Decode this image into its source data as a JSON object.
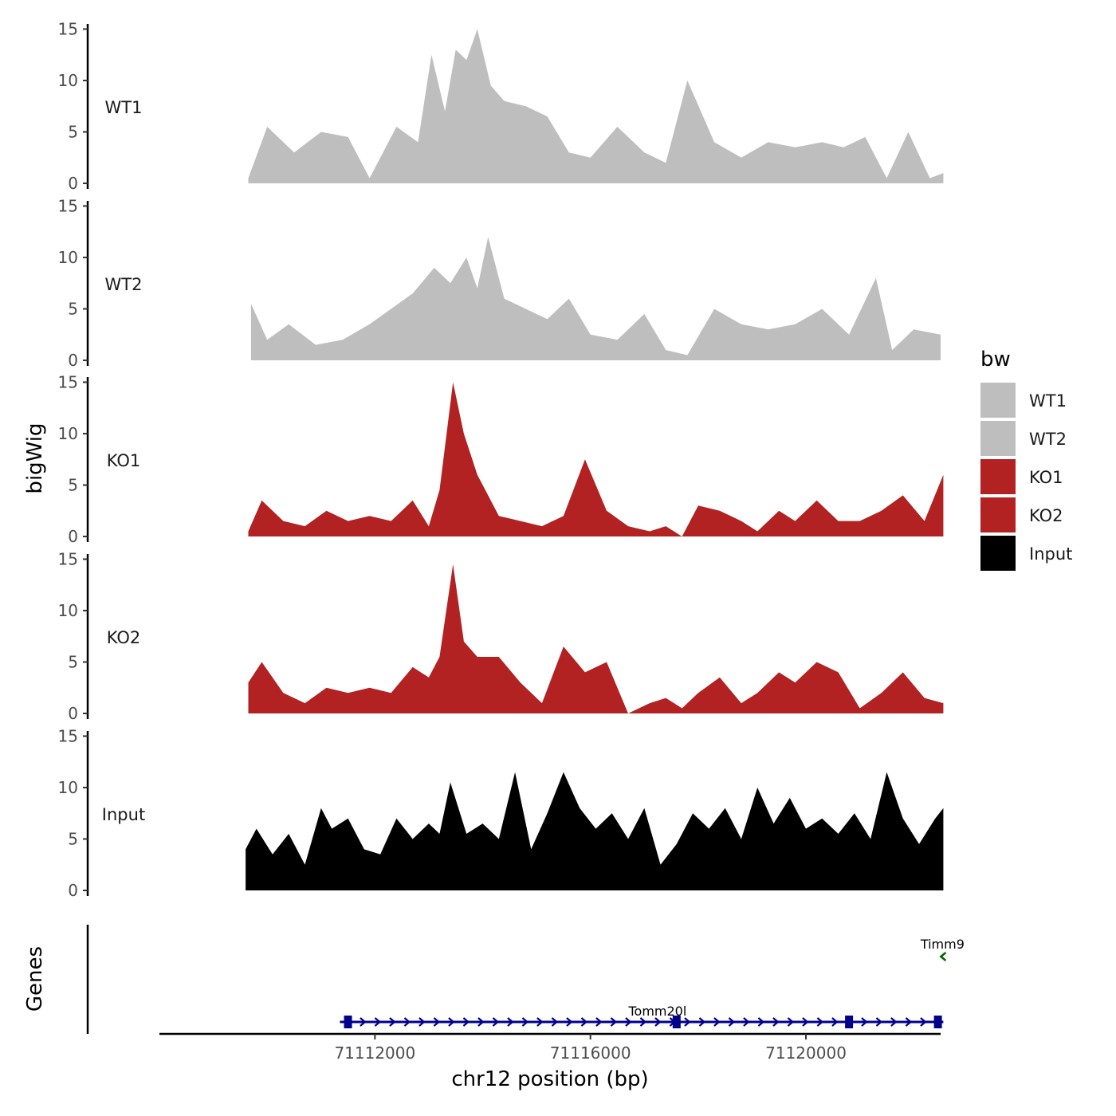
{
  "chart_data": {
    "type": "area",
    "ylabel": "bigWig",
    "genes_label": "Genes",
    "xlabel": "chr12 position (bp)",
    "xlim": [
      71108000,
      71122500
    ],
    "ylim": [
      0,
      15.5
    ],
    "yticks": [
      "0",
      "5",
      "10",
      "15"
    ],
    "xticks": [
      {
        "value": 71112000,
        "label": "71112000"
      },
      {
        "value": 71116000,
        "label": "71116000"
      },
      {
        "value": 71120000,
        "label": "71120000"
      }
    ],
    "legend": {
      "title": "bw",
      "entries": [
        {
          "label": "WT1",
          "color": "#bebebe"
        },
        {
          "label": "WT2",
          "color": "#bebebe"
        },
        {
          "label": "KO1",
          "color": "#b22222"
        },
        {
          "label": "KO2",
          "color": "#b22222"
        },
        {
          "label": "Input",
          "color": "#000000"
        }
      ]
    },
    "tracks": [
      {
        "name": "WT1",
        "color": "#bebebe",
        "x": [
          71109650,
          71110000,
          71110500,
          71111000,
          71111500,
          71111900,
          71112400,
          71112800,
          71113050,
          71113300,
          71113500,
          71113700,
          71113900,
          71114150,
          71114400,
          71114800,
          71115200,
          71115600,
          71116000,
          71116500,
          71117000,
          71117400,
          71117800,
          71118300,
          71118800,
          71119300,
          71119800,
          71120300,
          71120700,
          71121100,
          71121500,
          71121900,
          71122300,
          71122550
        ],
        "values": [
          0.5,
          5.5,
          3.0,
          5.0,
          4.5,
          0.5,
          5.5,
          4.0,
          12.5,
          7.0,
          13.0,
          12.0,
          15.0,
          9.5,
          8.0,
          7.5,
          6.5,
          3.0,
          2.5,
          5.5,
          3.0,
          2.0,
          10.0,
          4.0,
          2.5,
          4.0,
          3.5,
          4.0,
          3.5,
          4.5,
          0.5,
          5.0,
          0.5,
          1.0
        ]
      },
      {
        "name": "WT2",
        "color": "#bebebe",
        "x": [
          71109700,
          71110000,
          71110400,
          71110900,
          71111400,
          71111900,
          71112300,
          71112700,
          71113100,
          71113400,
          71113700,
          71113900,
          71114100,
          71114400,
          71114800,
          71115200,
          71115600,
          71116000,
          71116500,
          71117000,
          71117400,
          71117800,
          71118300,
          71118800,
          71119300,
          71119800,
          71120300,
          71120800,
          71121300,
          71121600,
          71122000,
          71122500
        ],
        "values": [
          5.5,
          2.0,
          3.5,
          1.5,
          2.0,
          3.5,
          5.0,
          6.5,
          9.0,
          7.5,
          10.0,
          7.0,
          12.0,
          6.0,
          5.0,
          4.0,
          6.0,
          2.5,
          2.0,
          4.5,
          1.0,
          0.5,
          5.0,
          3.5,
          3.0,
          3.5,
          5.0,
          2.5,
          8.0,
          1.0,
          3.0,
          2.5
        ]
      },
      {
        "name": "KO1",
        "color": "#b22222",
        "x": [
          71109650,
          71109900,
          71110300,
          71110700,
          71111100,
          71111500,
          71111900,
          71112300,
          71112700,
          71113000,
          71113200,
          71113450,
          71113650,
          71113900,
          71114300,
          71114700,
          71115100,
          71115500,
          71115900,
          71116300,
          71116700,
          71117100,
          71117400,
          71117700,
          71118000,
          71118400,
          71118800,
          71119100,
          71119500,
          71119800,
          71120200,
          71120600,
          71121000,
          71121400,
          71121800,
          71122200,
          71122550
        ],
        "values": [
          0.5,
          3.5,
          1.5,
          1.0,
          2.5,
          1.5,
          2.0,
          1.5,
          3.5,
          1.0,
          4.5,
          15.0,
          10.0,
          6.0,
          2.0,
          1.5,
          1.0,
          2.0,
          7.5,
          2.5,
          1.0,
          0.5,
          1.0,
          0.0,
          3.0,
          2.5,
          1.5,
          0.5,
          2.5,
          1.5,
          3.5,
          1.5,
          1.5,
          2.5,
          4.0,
          1.5,
          6.0
        ]
      },
      {
        "name": "KO2",
        "color": "#b22222",
        "x": [
          71109650,
          71109900,
          71110300,
          71110700,
          71111100,
          71111500,
          71111900,
          71112300,
          71112700,
          71113000,
          71113200,
          71113450,
          71113650,
          71113900,
          71114300,
          71114700,
          71115100,
          71115500,
          71115900,
          71116300,
          71116700,
          71117100,
          71117400,
          71117700,
          71118000,
          71118400,
          71118800,
          71119100,
          71119500,
          71119800,
          71120200,
          71120600,
          71121000,
          71121400,
          71121800,
          71122200,
          71122550
        ],
        "values": [
          3.0,
          5.0,
          2.0,
          1.0,
          2.5,
          2.0,
          2.5,
          2.0,
          4.5,
          3.5,
          5.5,
          14.5,
          7.0,
          5.5,
          5.5,
          3.0,
          1.0,
          6.5,
          4.0,
          5.0,
          0.0,
          1.0,
          1.5,
          0.5,
          2.0,
          3.5,
          1.0,
          2.0,
          4.0,
          3.0,
          5.0,
          4.0,
          0.5,
          2.0,
          4.0,
          1.5,
          1.0
        ]
      },
      {
        "name": "Input",
        "color": "#000000",
        "x": [
          71109600,
          71109800,
          71110100,
          71110400,
          71110700,
          71111000,
          71111200,
          71111500,
          71111800,
          71112100,
          71112400,
          71112700,
          71113000,
          71113200,
          71113400,
          71113700,
          71114000,
          71114300,
          71114600,
          71114900,
          71115200,
          71115500,
          71115800,
          71116100,
          71116400,
          71116700,
          71117000,
          71117300,
          71117600,
          71117900,
          71118200,
          71118500,
          71118800,
          71119100,
          71119400,
          71119700,
          71120000,
          71120300,
          71120600,
          71120900,
          71121200,
          71121500,
          71121800,
          71122100,
          71122400,
          71122550
        ],
        "values": [
          4.0,
          6.0,
          3.5,
          5.5,
          2.5,
          8.0,
          6.0,
          7.0,
          4.0,
          3.5,
          7.0,
          5.0,
          6.5,
          5.5,
          10.5,
          5.5,
          6.5,
          5.0,
          11.5,
          4.0,
          7.5,
          11.5,
          8.0,
          6.0,
          7.5,
          5.0,
          8.0,
          2.5,
          4.5,
          7.5,
          6.0,
          8.0,
          5.0,
          10.0,
          6.5,
          9.0,
          6.0,
          7.0,
          5.5,
          7.5,
          5.0,
          11.5,
          7.0,
          4.5,
          7.0,
          8.0
        ]
      }
    ],
    "genes": [
      {
        "name": "Tomm20l",
        "strand": "+",
        "color": "#00008b",
        "start": 71111350,
        "end": 71122550,
        "exons": [
          71111500,
          71117600,
          71120800,
          71122450
        ]
      },
      {
        "name": "Timm9",
        "strand": "-",
        "color": "#006400",
        "start": 71122550,
        "end": 71122600,
        "exons": []
      }
    ]
  }
}
